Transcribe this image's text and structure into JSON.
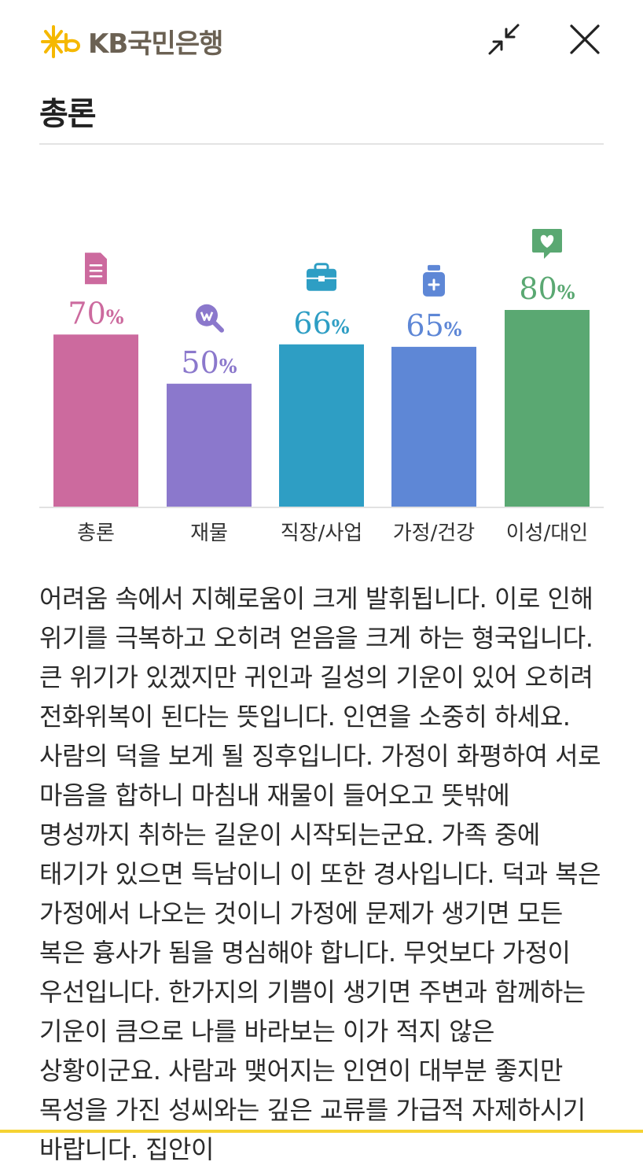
{
  "header": {
    "brand": "KB국민은행",
    "brand_color": "#f5b800",
    "minimize_icon": "collapse-arrows-icon",
    "close_icon": "close-icon"
  },
  "page": {
    "title": "총론"
  },
  "chart_data": {
    "type": "bar",
    "categories": [
      "총론",
      "재물",
      "직장/사업",
      "가정/건강",
      "이성/대인"
    ],
    "values": [
      70,
      50,
      66,
      65,
      80
    ],
    "unit": "%",
    "colors": [
      "#cc6a9e",
      "#8b78cc",
      "#2e9ec4",
      "#5e87d6",
      "#5aa872"
    ],
    "icons": [
      "document-icon",
      "money-search-icon",
      "briefcase-icon",
      "medicine-bottle-icon",
      "heart-chat-icon"
    ],
    "ylim": [
      0,
      100
    ]
  },
  "content": {
    "text": "어려움 속에서 지혜로움이 크게 발휘됩니다. 이로 인해 위기를 극복하고 오히려 얻음을 크게 하는 형국입니다. 큰 위기가 있겠지만 귀인과 길성의 기운이 있어 오히려 전화위복이 된다는 뜻입니다. 인연을 소중히 하세요. 사람의 덕을 보게 될 징후입니다. 가정이 화평하여 서로 마음을 합하니 마침내 재물이 들어오고 뜻밖에 명성까지 취하는 길운이 시작되는군요. 가족 중에 태기가 있으면 득남이니 이 또한 경사입니다. 덕과 복은 가정에서 나오는 것이니 가정에 문제가 생기면 모든 복은 흉사가 됨을 명심해야 합니다. 무엇보다 가정이 우선입니다. 한가지의 기쁨이 생기면 주변과 함께하는 기운이 큼으로 나를 바라보는 이가 적지 않은 상황이군요. 사람과 맺어지는 인연이 대부분 좋지만 목성을 가진 성씨와는 깊은 교류를 가급적 자제하시기 바랍니다. 집안이"
  }
}
